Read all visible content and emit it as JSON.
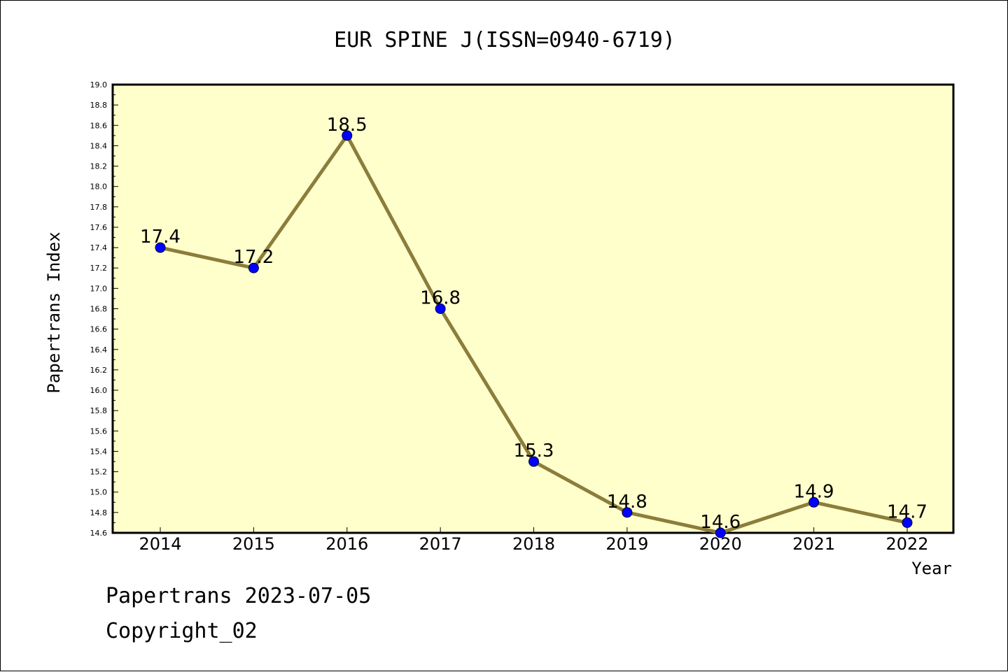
{
  "colors": {
    "plot_background": "#ffffcc",
    "line": "#8b7d3a",
    "marker": "#0000ff"
  },
  "chart_data": {
    "type": "line",
    "title": "EUR SPINE J(ISSN=0940-6719)",
    "xlabel": "Year",
    "ylabel": "Papertrans Index",
    "categories": [
      "2014",
      "2015",
      "2016",
      "2017",
      "2018",
      "2019",
      "2020",
      "2021",
      "2022"
    ],
    "series": [
      {
        "values": [
          17.4,
          17.2,
          18.5,
          16.8,
          15.3,
          14.8,
          14.6,
          14.9,
          14.7
        ],
        "labels": [
          "17.4",
          "17.2",
          "18.5",
          "16.8",
          "15.3",
          "14.8",
          "14.6",
          "14.9",
          "14.7"
        ]
      }
    ],
    "ylim": [
      14.6,
      19.0
    ],
    "ytick_step": 0.2,
    "yticks": [
      "14.6",
      "14.8",
      "15.0",
      "15.2",
      "15.4",
      "15.6",
      "15.8",
      "16.0",
      "16.2",
      "16.4",
      "16.6",
      "16.8",
      "17.0",
      "17.2",
      "17.4",
      "17.6",
      "17.8",
      "18.0",
      "18.2",
      "18.4",
      "18.6",
      "18.8",
      "19.0"
    ],
    "grid": false,
    "legend": "none"
  },
  "footer": {
    "line1": "Papertrans 2023-07-05",
    "line2": "Copyright_02"
  }
}
